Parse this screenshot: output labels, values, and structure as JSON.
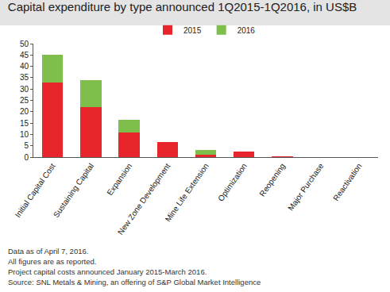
{
  "chart_data": {
    "type": "bar",
    "title": "Capital expenditure by type announced 1Q2015-1Q2016, in US$B",
    "categories": [
      "Initial Capital Cost",
      "Sustaining Capital",
      "Expansion",
      "New Zone Development",
      "Mine Life Extension",
      "Optimization",
      "Reopening",
      "Major Purchase",
      "Reactivation"
    ],
    "series": [
      {
        "name": "2015",
        "color": "#e8252b",
        "values": [
          33,
          22,
          11,
          6.5,
          1,
          2.3,
          0.5,
          0,
          0
        ]
      },
      {
        "name": "2016",
        "color": "#7dbf4a",
        "values": [
          12,
          12,
          5.5,
          0,
          2,
          0,
          0,
          0,
          0
        ]
      }
    ],
    "stacked": true,
    "ylim": [
      0,
      50
    ],
    "yticks": [
      0,
      5,
      10,
      15,
      20,
      25,
      30,
      35,
      40,
      45,
      50
    ],
    "grid": false,
    "legend": "top",
    "annotations": [
      "Data as of April 7, 2016.",
      "All figures are as reported.",
      "Project capital costs announced January 2015-March 2016.",
      "Source: SNL Metals & Mining, an offering of S&P Global Market Intelligence"
    ]
  }
}
